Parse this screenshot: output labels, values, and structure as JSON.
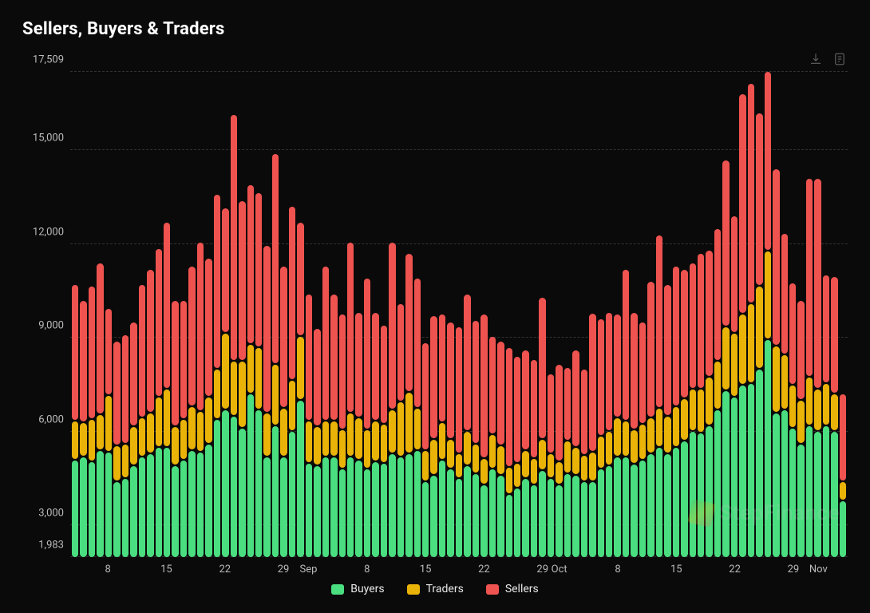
{
  "title": "Sellers, Buyers & Traders",
  "background_color": "#0a0a0a",
  "grid_color": "#333333",
  "tick_color": "#bababa",
  "watermark": "StepFinance",
  "chart": {
    "type": "stacked-bar",
    "ylim": [
      1983,
      17509
    ],
    "y_ticks": [
      {
        "v": 1983,
        "label": "1,983"
      },
      {
        "v": 3000,
        "label": "3,000"
      },
      {
        "v": 6000,
        "label": "6,000"
      },
      {
        "v": 9000,
        "label": "9,000"
      },
      {
        "v": 12000,
        "label": "12,000"
      },
      {
        "v": 15000,
        "label": "15,000"
      },
      {
        "v": 17509,
        "label": "17,509"
      }
    ],
    "series": {
      "buyers": {
        "label": "Buyers",
        "color": "#4ade80"
      },
      "traders": {
        "label": "Traders",
        "color": "#eab308"
      },
      "sellers": {
        "label": "Sellers",
        "color": "#ef5350"
      }
    },
    "stack_order": [
      "buyers",
      "traders",
      "sellers"
    ],
    "bars": [
      {
        "buyers": 3100,
        "traders": 1200,
        "sellers": 4300
      },
      {
        "buyers": 3200,
        "traders": 1050,
        "sellers": 3850
      },
      {
        "buyers": 3050,
        "traders": 1300,
        "sellers": 4200
      },
      {
        "buyers": 3400,
        "traders": 1100,
        "sellers": 4800
      },
      {
        "buyers": 3350,
        "traders": 1750,
        "sellers": 2750
      },
      {
        "buyers": 2400,
        "traders": 1100,
        "sellers": 3300
      },
      {
        "buyers": 2500,
        "traders": 1050,
        "sellers": 3450
      },
      {
        "buyers": 2900,
        "traders": 1200,
        "sellers": 3300
      },
      {
        "buyers": 3200,
        "traders": 1200,
        "sellers": 4200
      },
      {
        "buyers": 3300,
        "traders": 1250,
        "sellers": 4550
      },
      {
        "buyers": 3500,
        "traders": 1550,
        "sellers": 4700
      },
      {
        "buyers": 3500,
        "traders": 1800,
        "sellers": 5300
      },
      {
        "buyers": 2900,
        "traders": 1200,
        "sellers": 4000
      },
      {
        "buyers": 3100,
        "traders": 1250,
        "sellers": 3750
      },
      {
        "buyers": 3400,
        "traders": 1350,
        "sellers": 4450
      },
      {
        "buyers": 3350,
        "traders": 1250,
        "sellers": 5350
      },
      {
        "buyers": 3600,
        "traders": 1450,
        "sellers": 4400
      },
      {
        "buyers": 4400,
        "traders": 1550,
        "sellers": 5550
      },
      {
        "buyers": 4700,
        "traders": 2400,
        "sellers": 3950
      },
      {
        "buyers": 4500,
        "traders": 1700,
        "sellers": 7850
      },
      {
        "buyers": 4100,
        "traders": 2100,
        "sellers": 5100
      },
      {
        "buyers": 5200,
        "traders": 1550,
        "sellers": 5050
      },
      {
        "buyers": 4700,
        "traders": 1950,
        "sellers": 4900
      },
      {
        "buyers": 3200,
        "traders": 1350,
        "sellers": 5300
      },
      {
        "buyers": 4200,
        "traders": 1900,
        "sellers": 6700
      },
      {
        "buyers": 3200,
        "traders": 1500,
        "sellers": 4500
      },
      {
        "buyers": 4000,
        "traders": 1600,
        "sellers": 5500
      },
      {
        "buyers": 5000,
        "traders": 2000,
        "sellers": 3600
      },
      {
        "buyers": 3000,
        "traders": 1300,
        "sellers": 4000
      },
      {
        "buyers": 2900,
        "traders": 1200,
        "sellers": 3100
      },
      {
        "buyers": 3200,
        "traders": 1100,
        "sellers": 4900
      },
      {
        "buyers": 3200,
        "traders": 1100,
        "sellers": 4000
      },
      {
        "buyers": 2800,
        "traders": 1200,
        "sellers": 3650
      },
      {
        "buyers": 3200,
        "traders": 1350,
        "sellers": 5400
      },
      {
        "buyers": 3100,
        "traders": 1300,
        "sellers": 3300
      },
      {
        "buyers": 2800,
        "traders": 1200,
        "sellers": 4800
      },
      {
        "buyers": 3050,
        "traders": 1250,
        "sellers": 3400
      },
      {
        "buyers": 3000,
        "traders": 1200,
        "sellers": 3100
      },
      {
        "buyers": 3300,
        "traders": 1350,
        "sellers": 5300
      },
      {
        "buyers": 3200,
        "traders": 1700,
        "sellers": 3100
      },
      {
        "buyers": 3300,
        "traders": 1900,
        "sellers": 4400
      },
      {
        "buyers": 3400,
        "traders": 1300,
        "sellers": 4100
      },
      {
        "buyers": 2400,
        "traders": 950,
        "sellers": 3400
      },
      {
        "buyers": 2600,
        "traders": 1100,
        "sellers": 3900
      },
      {
        "buyers": 3100,
        "traders": 1150,
        "sellers": 3400
      },
      {
        "buyers": 2800,
        "traders": 900,
        "sellers": 3700
      },
      {
        "buyers": 2500,
        "traders": 750,
        "sellers": 4000
      },
      {
        "buyers": 2900,
        "traders": 1050,
        "sellers": 4350
      },
      {
        "buyers": 2650,
        "traders": 900,
        "sellers": 3900
      },
      {
        "buyers": 2300,
        "traders": 800,
        "sellers": 4550
      },
      {
        "buyers": 2800,
        "traders": 1050,
        "sellers": 3100
      },
      {
        "buyers": 2600,
        "traders": 900,
        "sellers": 3300
      },
      {
        "buyers": 2000,
        "traders": 800,
        "sellers": 3800
      },
      {
        "buyers": 2200,
        "traders": 750,
        "sellers": 3350
      },
      {
        "buyers": 2500,
        "traders": 850,
        "sellers": 3150
      },
      {
        "buyers": 2300,
        "traders": 800,
        "sellers": 3100
      },
      {
        "buyers": 2750,
        "traders": 950,
        "sellers": 4500
      },
      {
        "buyers": 2500,
        "traders": 750,
        "sellers": 2500
      },
      {
        "buyers": 2300,
        "traders": 700,
        "sellers": 3050
      },
      {
        "buyers": 2650,
        "traders": 1000,
        "sellers": 2300
      },
      {
        "buyers": 2600,
        "traders": 850,
        "sellers": 3050
      },
      {
        "buyers": 2400,
        "traders": 800,
        "sellers": 2700
      },
      {
        "buyers": 2400,
        "traders": 900,
        "sellers": 4400
      },
      {
        "buyers": 2800,
        "traders": 1000,
        "sellers": 3700
      },
      {
        "buyers": 2900,
        "traders": 1050,
        "sellers": 3750
      },
      {
        "buyers": 3200,
        "traders": 1200,
        "sellers": 3250
      },
      {
        "buyers": 3200,
        "traders": 1100,
        "sellers": 4800
      },
      {
        "buyers": 2950,
        "traders": 1050,
        "sellers": 3700
      },
      {
        "buyers": 3100,
        "traders": 1100,
        "sellers": 3200
      },
      {
        "buyers": 3300,
        "traders": 1100,
        "sellers": 4300
      },
      {
        "buyers": 3500,
        "traders": 1200,
        "sellers": 5500
      },
      {
        "buyers": 3300,
        "traders": 1150,
        "sellers": 4150
      },
      {
        "buyers": 3500,
        "traders": 1250,
        "sellers": 4450
      },
      {
        "buyers": 3700,
        "traders": 1300,
        "sellers": 4100
      },
      {
        "buyers": 4000,
        "traders": 1300,
        "sellers": 4000
      },
      {
        "buyers": 3950,
        "traders": 1350,
        "sellers": 4300
      },
      {
        "buyers": 4200,
        "traders": 1500,
        "sellers": 4000
      },
      {
        "buyers": 4700,
        "traders": 1500,
        "sellers": 4200
      },
      {
        "buyers": 5300,
        "traders": 2000,
        "sellers": 5300
      },
      {
        "buyers": 5100,
        "traders": 2000,
        "sellers": 3700
      },
      {
        "buyers": 5500,
        "traders": 2200,
        "sellers": 7000
      },
      {
        "buyers": 5550,
        "traders": 2500,
        "sellers": 7000
      },
      {
        "buyers": 6000,
        "traders": 2600,
        "sellers": 5500
      },
      {
        "buyers": 7800,
        "traders": 3100,
        "sellers": 6400
      },
      {
        "buyers": 4600,
        "traders": 2100,
        "sellers": 5600
      },
      {
        "buyers": 4700,
        "traders": 1700,
        "sellers": 3850
      },
      {
        "buyers": 4100,
        "traders": 1350,
        "sellers": 3200
      },
      {
        "buyers": 3600,
        "traders": 1350,
        "sellers": 3150
      },
      {
        "buyers": 4200,
        "traders": 1500,
        "sellers": 6300
      },
      {
        "buyers": 4000,
        "traders": 1300,
        "sellers": 6700
      },
      {
        "buyers": 4200,
        "traders": 1300,
        "sellers": 3400
      },
      {
        "buyers": 4000,
        "traders": 1150,
        "sellers": 3700
      },
      {
        "buyers": 1800,
        "traders": 550,
        "sellers": 2750
      }
    ],
    "x_ticks": [
      {
        "i": 4,
        "label": "8"
      },
      {
        "i": 11,
        "label": "15"
      },
      {
        "i": 18,
        "label": "22"
      },
      {
        "i": 25,
        "label": "29"
      },
      {
        "i": 28,
        "label": "Sep"
      },
      {
        "i": 35,
        "label": "8"
      },
      {
        "i": 42,
        "label": "15"
      },
      {
        "i": 49,
        "label": "22"
      },
      {
        "i": 56,
        "label": "29"
      },
      {
        "i": 58,
        "label": "Oct"
      },
      {
        "i": 65,
        "label": "8"
      },
      {
        "i": 72,
        "label": "15"
      },
      {
        "i": 79,
        "label": "22"
      },
      {
        "i": 86,
        "label": "29"
      },
      {
        "i": 89,
        "label": "Nov"
      }
    ]
  }
}
